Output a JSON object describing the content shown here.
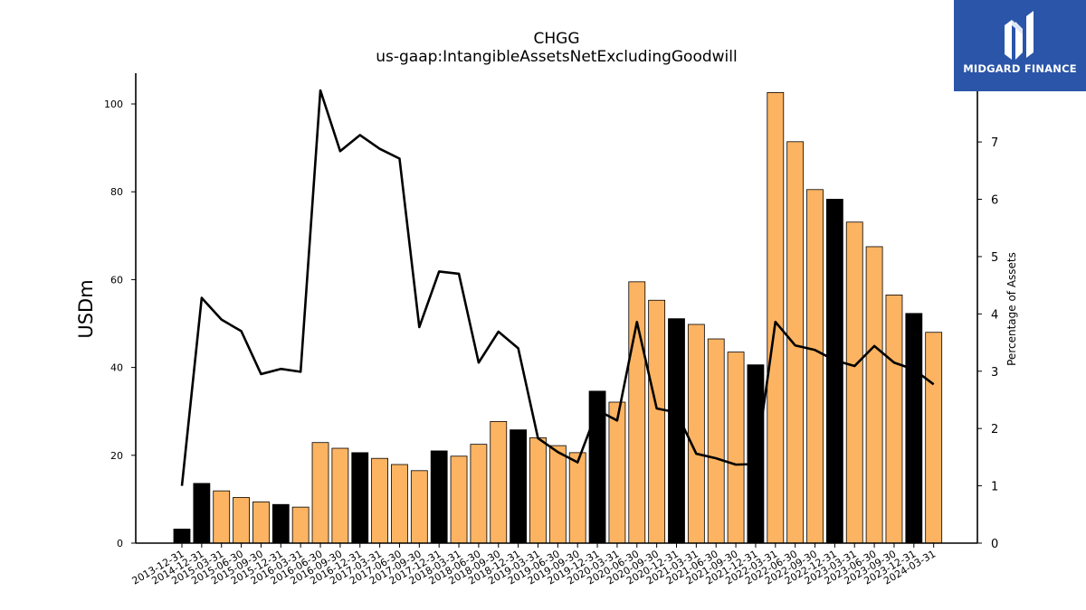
{
  "brand": {
    "name": "MIDGARD FINANCE",
    "bg_color": "#2a55a8"
  },
  "chart_data": {
    "type": "bar",
    "title": "CHGG",
    "subtitle": "us-gaap:IntangibleAssetsNetExcludingGoodwill",
    "ylabel": "USDm",
    "y2label": "Percentage of Assets",
    "ylim": [
      0,
      107
    ],
    "y2lim": [
      0,
      8.2
    ],
    "yticks": [
      0,
      20,
      40,
      60,
      80,
      100
    ],
    "y2ticks": [
      0,
      1,
      2,
      3,
      4,
      5,
      6,
      7
    ],
    "colors": {
      "quarter": "#fdb462",
      "year_end": "#000000",
      "line": "#000000"
    },
    "categories": [
      "2013-12-31",
      "2014-12-31",
      "2015-03-31",
      "2015-06-30",
      "2015-09-30",
      "2015-12-31",
      "2016-03-31",
      "2016-06-30",
      "2016-09-30",
      "2016-12-31",
      "2017-03-31",
      "2017-06-30",
      "2017-09-30",
      "2017-12-31",
      "2018-03-31",
      "2018-06-30",
      "2018-09-30",
      "2018-12-31",
      "2019-03-31",
      "2019-06-30",
      "2019-09-30",
      "2019-12-31",
      "2020-03-31",
      "2020-06-30",
      "2020-09-30",
      "2020-12-31",
      "2021-03-31",
      "2021-06-30",
      "2021-09-30",
      "2021-12-31",
      "2022-03-31",
      "2022-06-30",
      "2022-09-30",
      "2022-12-31",
      "2023-03-31",
      "2023-06-30",
      "2023-09-30",
      "2023-12-31",
      "2024-03-31"
    ],
    "series": [
      {
        "type": "bar",
        "values": [
          3.2,
          13.6,
          11.9,
          10.4,
          9.4,
          8.8,
          8.2,
          22.9,
          21.6,
          20.6,
          19.3,
          17.9,
          16.5,
          21.0,
          19.8,
          22.5,
          27.7,
          25.8,
          24.0,
          22.2,
          20.6,
          34.6,
          32.1,
          59.5,
          55.3,
          51.1,
          49.8,
          46.5,
          43.5,
          40.6,
          102.6,
          91.4,
          80.5,
          78.3,
          73.1,
          67.5,
          56.5,
          52.3,
          48.0
        ],
        "is_year_end": [
          true,
          true,
          false,
          false,
          false,
          true,
          false,
          false,
          false,
          true,
          false,
          false,
          false,
          true,
          false,
          false,
          false,
          true,
          false,
          false,
          false,
          true,
          false,
          false,
          false,
          true,
          false,
          false,
          false,
          true,
          false,
          false,
          false,
          true,
          false,
          false,
          false,
          true,
          false
        ]
      },
      {
        "type": "line",
        "axis": "right",
        "values": [
          1.0,
          4.28,
          3.9,
          3.7,
          2.95,
          3.04,
          2.99,
          7.9,
          6.84,
          7.12,
          6.88,
          6.71,
          3.77,
          4.74,
          4.7,
          3.15,
          3.69,
          3.4,
          1.83,
          1.59,
          1.41,
          2.32,
          2.14,
          3.86,
          2.35,
          2.28,
          1.56,
          1.48,
          1.37,
          1.38,
          3.86,
          3.45,
          3.37,
          3.19,
          3.09,
          3.44,
          3.15,
          3.03,
          2.77
        ]
      }
    ]
  }
}
